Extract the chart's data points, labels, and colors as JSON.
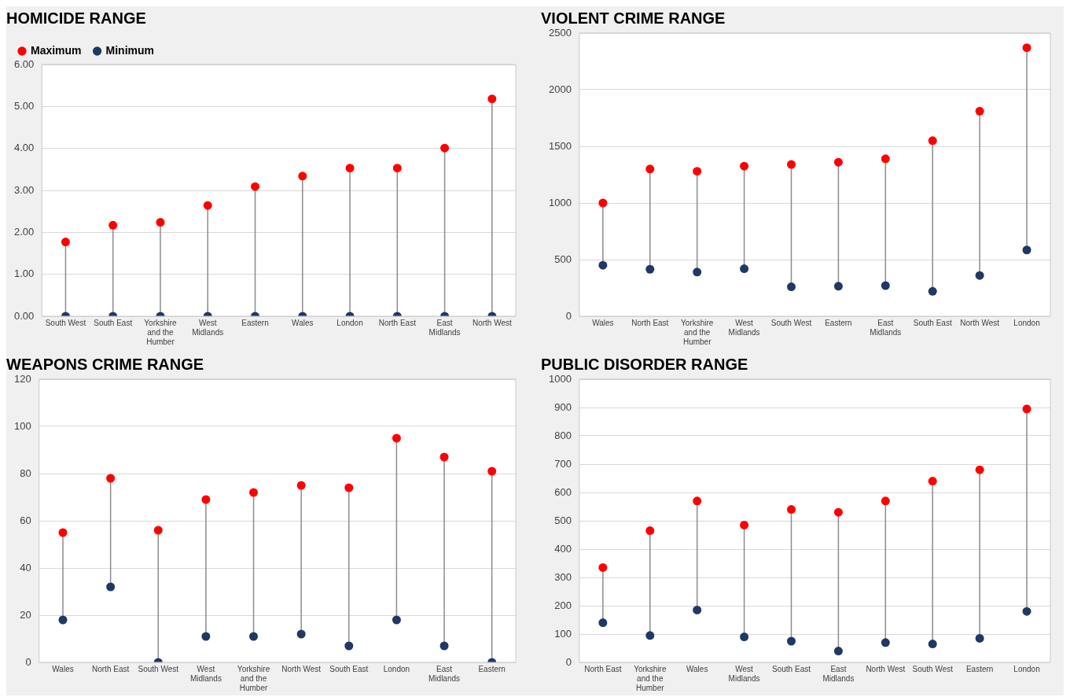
{
  "chart_data": [
    {
      "type": "scatter",
      "title": "HOMICIDE RANGE",
      "categories": [
        "South West",
        "South East",
        "Yorkshire and the Humber",
        "West Midlands",
        "Eastern",
        "Wales",
        "London",
        "North East",
        "East Midlands",
        "North West"
      ],
      "series": [
        {
          "name": "Maximum",
          "color": "#ff0000",
          "values": [
            1.77,
            2.17,
            2.24,
            2.64,
            3.09,
            3.34,
            3.53,
            3.53,
            4.01,
            5.18
          ]
        },
        {
          "name": "Minimum",
          "color": "#1f3864",
          "values": [
            0,
            0,
            0,
            0,
            0,
            0,
            0,
            0,
            0,
            0
          ]
        }
      ],
      "ylim": [
        0,
        6
      ],
      "yticks": [
        {
          "value": 0,
          "label": "0.00"
        },
        {
          "value": 1,
          "label": "1.00"
        },
        {
          "value": 2,
          "label": "2.00"
        },
        {
          "value": 3,
          "label": "3.00"
        },
        {
          "value": 4,
          "label": "4.00"
        },
        {
          "value": 5,
          "label": "5.00"
        },
        {
          "value": 6,
          "label": "6.00"
        }
      ],
      "grid": "y",
      "legend": "top left",
      "marker": "circle"
    },
    {
      "type": "scatter",
      "title": "VIOLENT CRIME RANGE",
      "categories": [
        "Wales",
        "North East",
        "Yorkshire and the Humber",
        "West Midlands",
        "South West",
        "Eastern",
        "East Midlands",
        "South East",
        "North West",
        "London"
      ],
      "series": [
        {
          "color": "#ff0000",
          "values": [
            1000,
            1300,
            1280,
            1325,
            1340,
            1360,
            1390,
            1550,
            1810,
            2370
          ]
        },
        {
          "color": "#1f3864",
          "values": [
            450,
            415,
            390,
            420,
            260,
            265,
            270,
            220,
            360,
            585
          ]
        }
      ],
      "ylim": [
        0,
        2500
      ],
      "yticks": [
        0,
        500,
        1000,
        1500,
        2000,
        2500
      ],
      "grid": "y",
      "marker": "circle"
    },
    {
      "type": "scatter",
      "title": "WEAPONS CRIME RANGE",
      "categories": [
        "Wales",
        "North East",
        "South West",
        "West Midlands",
        "Yorkshire and the Humber",
        "North West",
        "South East",
        "London",
        "East Midlands",
        "Eastern"
      ],
      "series": [
        {
          "color": "#ff0000",
          "values": [
            55,
            78,
            56,
            69,
            72,
            75,
            74,
            95,
            87,
            81
          ]
        },
        {
          "color": "#1f3864",
          "values": [
            18,
            32,
            0,
            11,
            11,
            12,
            7,
            18,
            7,
            0
          ]
        }
      ],
      "ylim": [
        0,
        120
      ],
      "yticks": [
        0,
        20,
        40,
        60,
        80,
        100,
        120
      ],
      "grid": "y",
      "marker": "circle"
    },
    {
      "type": "scatter",
      "title": "PUBLIC DISORDER RANGE",
      "categories": [
        "North East",
        "Yorkshire and the Humber",
        "Wales",
        "West Midlands",
        "South East",
        "East Midlands",
        "North West",
        "South West",
        "Eastern",
        "London"
      ],
      "series": [
        {
          "color": "#ff0000",
          "values": [
            335,
            465,
            570,
            485,
            540,
            530,
            570,
            640,
            680,
            895
          ]
        },
        {
          "color": "#1f3864",
          "values": [
            140,
            95,
            185,
            90,
            75,
            40,
            70,
            65,
            85,
            180
          ]
        }
      ],
      "ylim": [
        0,
        1000
      ],
      "yticks": [
        0,
        100,
        200,
        300,
        400,
        500,
        600,
        700,
        800,
        900,
        1000
      ],
      "grid": "y",
      "marker": "circle"
    }
  ]
}
